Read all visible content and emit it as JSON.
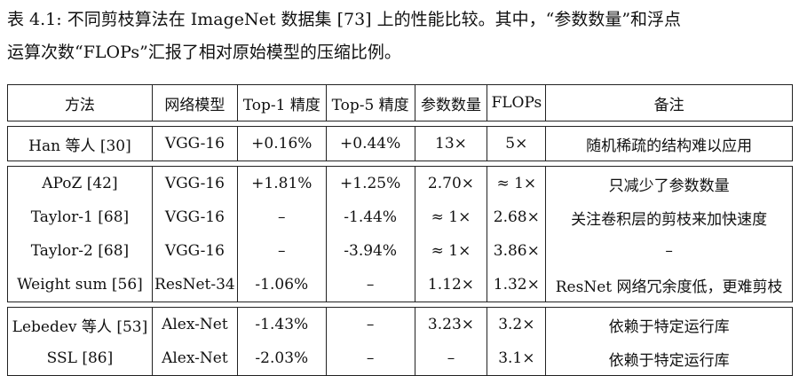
{
  "caption": "表 4.1: 不同剪枝算法在 ImageNet 数据集 [73] 上的性能比较。其中，“参数数量”和浮点运算次数“FLOPs”汇报了相对原始模型的压缩比例。",
  "headers": [
    "方法",
    "网络模型",
    "Top-1 精度",
    "Top-5 精度",
    "参数数量",
    "FLOPs",
    "备注"
  ],
  "groups": [
    [
      [
        "Han 等人 [30]",
        "VGG-16",
        "+0.16%",
        "+0.44%",
        "13×",
        "5×",
        "随机稀疏的结构难以应用"
      ]
    ],
    [
      [
        "APoZ [42]",
        "VGG-16",
        "+1.81%",
        "+1.25%",
        "2.70×",
        "≈ 1×",
        "只减少了参数数量"
      ],
      [
        "Taylor-1 [68]",
        "VGG-16",
        "–",
        "-1.44%",
        "≈ 1×",
        "2.68×",
        "关注卷积层的剪枝来加快速度"
      ],
      [
        "Taylor-2 [68]",
        "VGG-16",
        "–",
        "-3.94%",
        "≈ 1×",
        "3.86×",
        "–"
      ],
      [
        "Weight sum [56]",
        "ResNet-34",
        "-1.06%",
        "–",
        "1.12×",
        "1.32×",
        "ResNet 网络冗余度低，更难剪枝"
      ]
    ],
    [
      [
        "Lebedev 等人 [53]",
        "Alex-Net",
        "-1.43%",
        "–",
        "3.23×",
        "3.2×",
        "依赖于特定运行库"
      ],
      [
        "SSL [86]",
        "Alex-Net",
        "-2.03%",
        "–",
        "–",
        "3.1×",
        "依赖于特定运行库"
      ]
    ]
  ]
}
